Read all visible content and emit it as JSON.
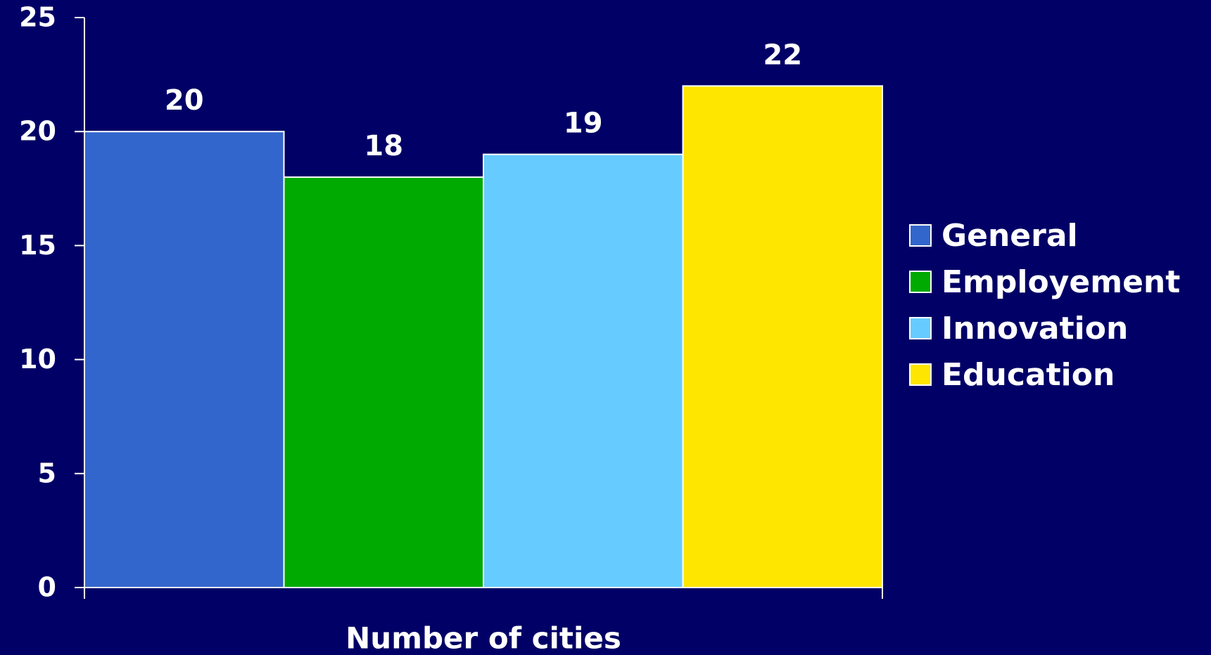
{
  "chart_data": {
    "type": "bar",
    "categories": [
      "Number of cities"
    ],
    "series": [
      {
        "name": "General",
        "color": "#3366cc",
        "values": [
          20
        ]
      },
      {
        "name": "Employement",
        "color": "#00aa00",
        "values": [
          18
        ]
      },
      {
        "name": "Innovation",
        "color": "#66ccff",
        "values": [
          19
        ]
      },
      {
        "name": "Education",
        "color": "#ffe600",
        "values": [
          22
        ]
      }
    ],
    "ylim": [
      0,
      25
    ],
    "yticks": [
      0,
      5,
      10,
      15,
      20,
      25
    ],
    "grid": false,
    "legend": "right"
  }
}
